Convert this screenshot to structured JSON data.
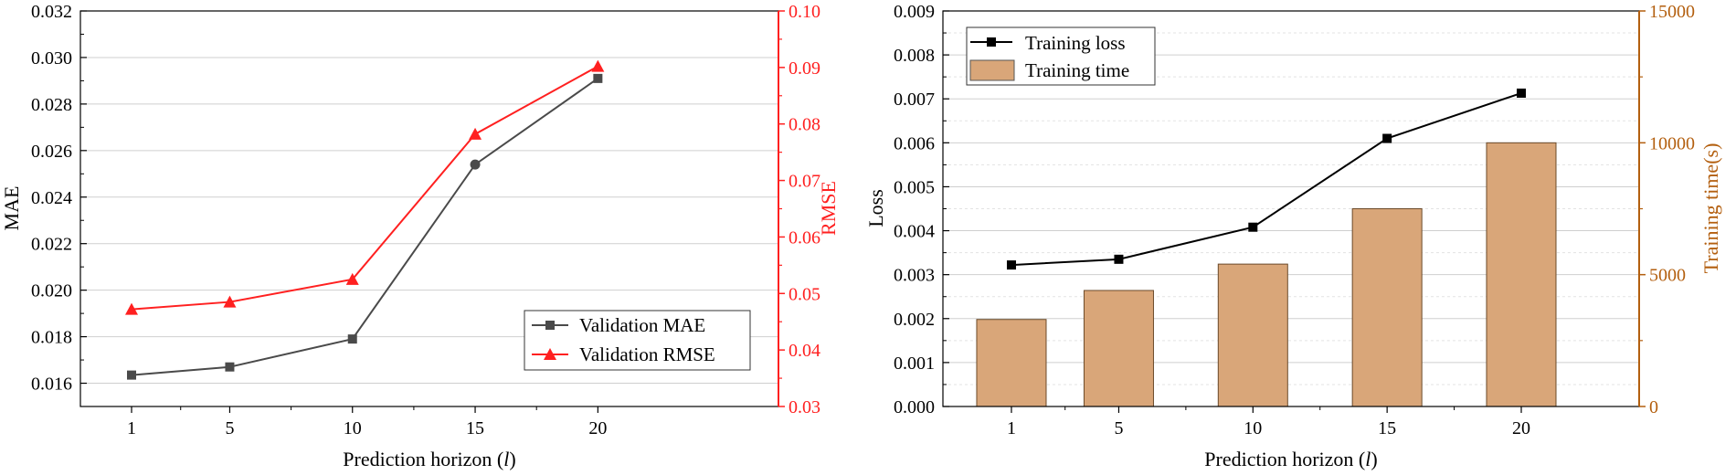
{
  "colors": {
    "mae": "#4a4a4a",
    "rmse": "#ff2020",
    "loss": "#000000",
    "time_fill": "#d9a679",
    "time_axis": "#b35f0f",
    "grid": "#cfcfcf"
  },
  "chart_data": [
    {
      "type": "line",
      "title": "",
      "xlabel_main": "Prediction horizon (",
      "xlabel_var": "l",
      "xlabel_close": ")",
      "ylabel_left": "MAE",
      "ylabel_right": "RMSE",
      "categories": [
        "1",
        "5",
        "10",
        "15",
        "20"
      ],
      "y_left_lim": [
        0.015,
        0.032
      ],
      "y_left_ticks": [
        "0.016",
        "0.018",
        "0.020",
        "0.022",
        "0.024",
        "0.026",
        "0.028",
        "0.030",
        "0.032"
      ],
      "y_right_lim": [
        0.03,
        0.1
      ],
      "y_right_ticks": [
        "0.03",
        "0.04",
        "0.05",
        "0.06",
        "0.07",
        "0.08",
        "0.09",
        "0.10"
      ],
      "grid": true,
      "legend_position": "bottom-right",
      "series": [
        {
          "name": "Validation MAE",
          "axis": "left",
          "marker": "square",
          "values": [
            0.01635,
            0.0167,
            0.0179,
            0.0254,
            0.0291
          ]
        },
        {
          "name": "Validation RMSE",
          "axis": "right",
          "marker": "triangle",
          "values": [
            0.0472,
            0.0485,
            0.0525,
            0.0782,
            0.0902
          ]
        }
      ]
    },
    {
      "type": "bar+line",
      "title": "",
      "xlabel_main": "Prediction horizon (",
      "xlabel_var": "l",
      "xlabel_close": ")",
      "ylabel_left": "Loss",
      "ylabel_right": "Training time(s)",
      "categories": [
        "1",
        "5",
        "10",
        "15",
        "20"
      ],
      "y_left_lim": [
        0,
        0.009
      ],
      "y_left_ticks": [
        "0.000",
        "0.001",
        "0.002",
        "0.003",
        "0.004",
        "0.005",
        "0.006",
        "0.007",
        "0.008",
        "0.009"
      ],
      "y_right_lim": [
        0,
        15000
      ],
      "y_right_ticks": [
        "0",
        "5000",
        "10000",
        "15000"
      ],
      "grid": true,
      "legend_position": "top-left",
      "series": [
        {
          "name": "Training loss",
          "axis": "left",
          "kind": "line",
          "marker": "square",
          "values": [
            0.00322,
            0.00335,
            0.00408,
            0.0061,
            0.00713
          ]
        },
        {
          "name": "Training time",
          "axis": "right",
          "kind": "bar",
          "values": [
            3300,
            4400,
            5400,
            7500,
            10000
          ]
        }
      ]
    }
  ]
}
